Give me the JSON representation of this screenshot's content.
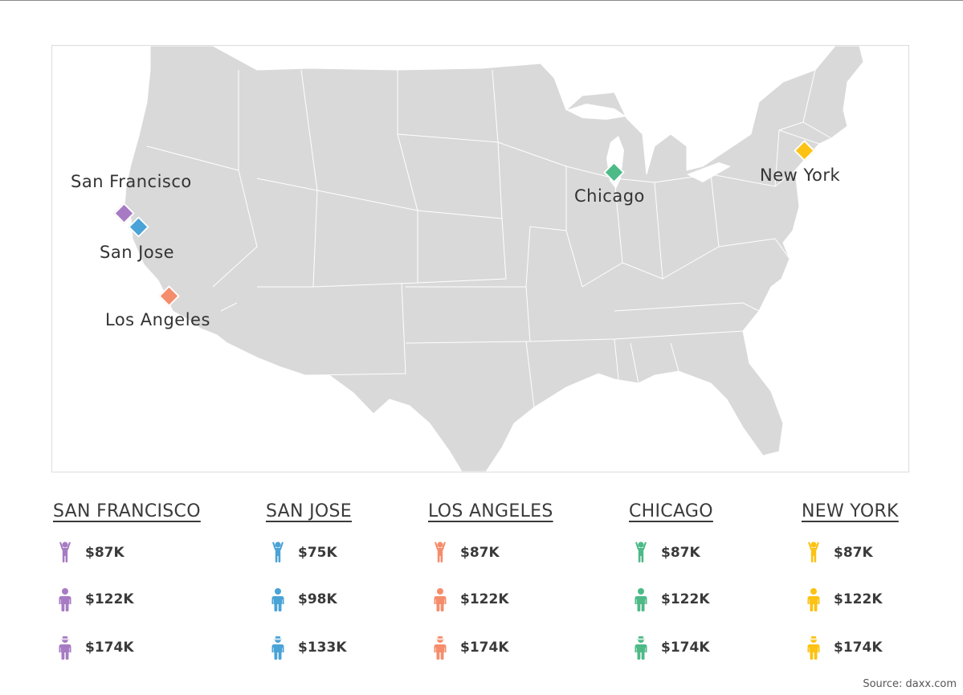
{
  "source": "Source: daxx.com",
  "colors": {
    "map_fill": "#d9d9d9",
    "map_border": "#ffffff"
  },
  "cities": [
    {
      "name": "San Francisco",
      "legend_title": "SAN FRANCISCO",
      "color": "#a77bc4",
      "salaries": [
        "$87K",
        "$122K",
        "$174K"
      ]
    },
    {
      "name": "San Jose",
      "legend_title": "SAN JOSE",
      "color": "#4aa3d6",
      "salaries": [
        "$75K",
        "$98K",
        "$133K"
      ]
    },
    {
      "name": "Los Angeles",
      "legend_title": "LOS ANGELES",
      "color": "#f58d6c",
      "salaries": [
        "$87K",
        "$122K",
        "$174K"
      ]
    },
    {
      "name": "Chicago",
      "legend_title": "CHICAGO",
      "color": "#4dba87",
      "salaries": [
        "$87K",
        "$122K",
        "$174K"
      ]
    },
    {
      "name": "New York",
      "legend_title": "NEW YORK",
      "color": "#fcc214",
      "salaries": [
        "$87K",
        "$122K",
        "$174K"
      ]
    }
  ],
  "levels": [
    {
      "icon": "junior-person-icon"
    },
    {
      "icon": "middle-person-icon"
    },
    {
      "icon": "senior-person-icon"
    }
  ]
}
